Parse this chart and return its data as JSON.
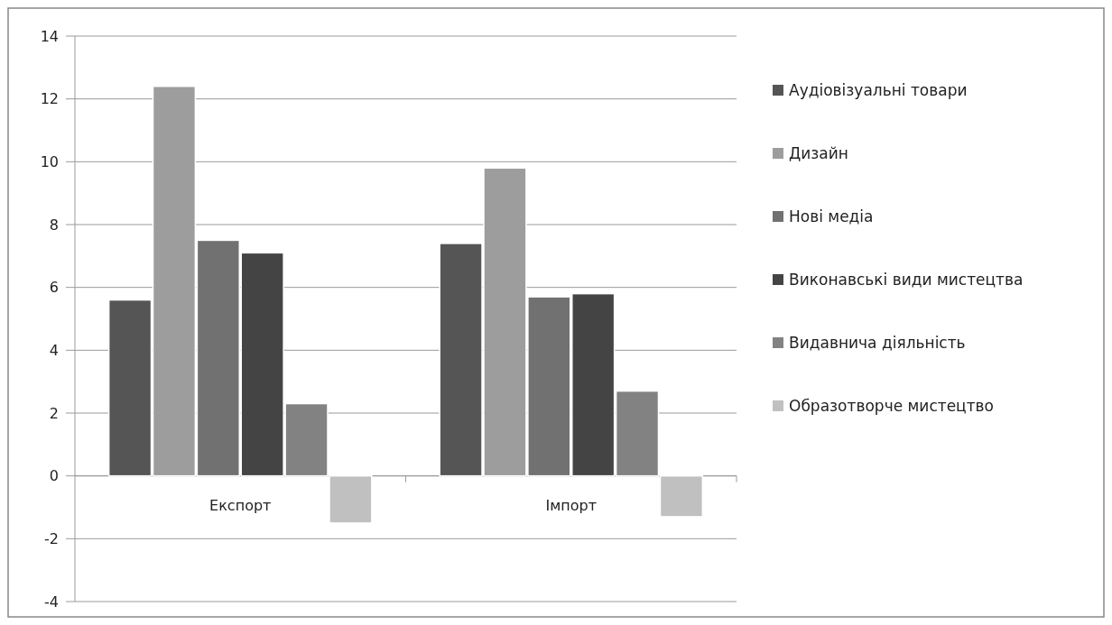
{
  "chart_data": {
    "type": "bar",
    "categories": [
      "Експорт",
      "Імпорт"
    ],
    "series": [
      {
        "name": "Аудіовізуальні товари",
        "color": "#555555",
        "values": [
          5.6,
          7.4
        ]
      },
      {
        "name": "Дизайн",
        "color": "#9d9d9d",
        "values": [
          12.4,
          9.8
        ]
      },
      {
        "name": "Нові медіа",
        "color": "#717171",
        "values": [
          7.5,
          5.7
        ]
      },
      {
        "name": "Виконавські види мистецтва",
        "color": "#444444",
        "values": [
          7.1,
          5.8
        ]
      },
      {
        "name": "Видавнича діяльність",
        "color": "#828282",
        "values": [
          2.3,
          2.7
        ]
      },
      {
        "name": "Образотворче мистецтво",
        "color": "#c0c0c0",
        "values": [
          -1.5,
          -1.3
        ]
      }
    ],
    "ylim": [
      -4,
      14
    ],
    "yticks": [
      -4,
      -2,
      0,
      2,
      4,
      6,
      8,
      10,
      12,
      14
    ],
    "grid": "y",
    "legend": "right"
  }
}
